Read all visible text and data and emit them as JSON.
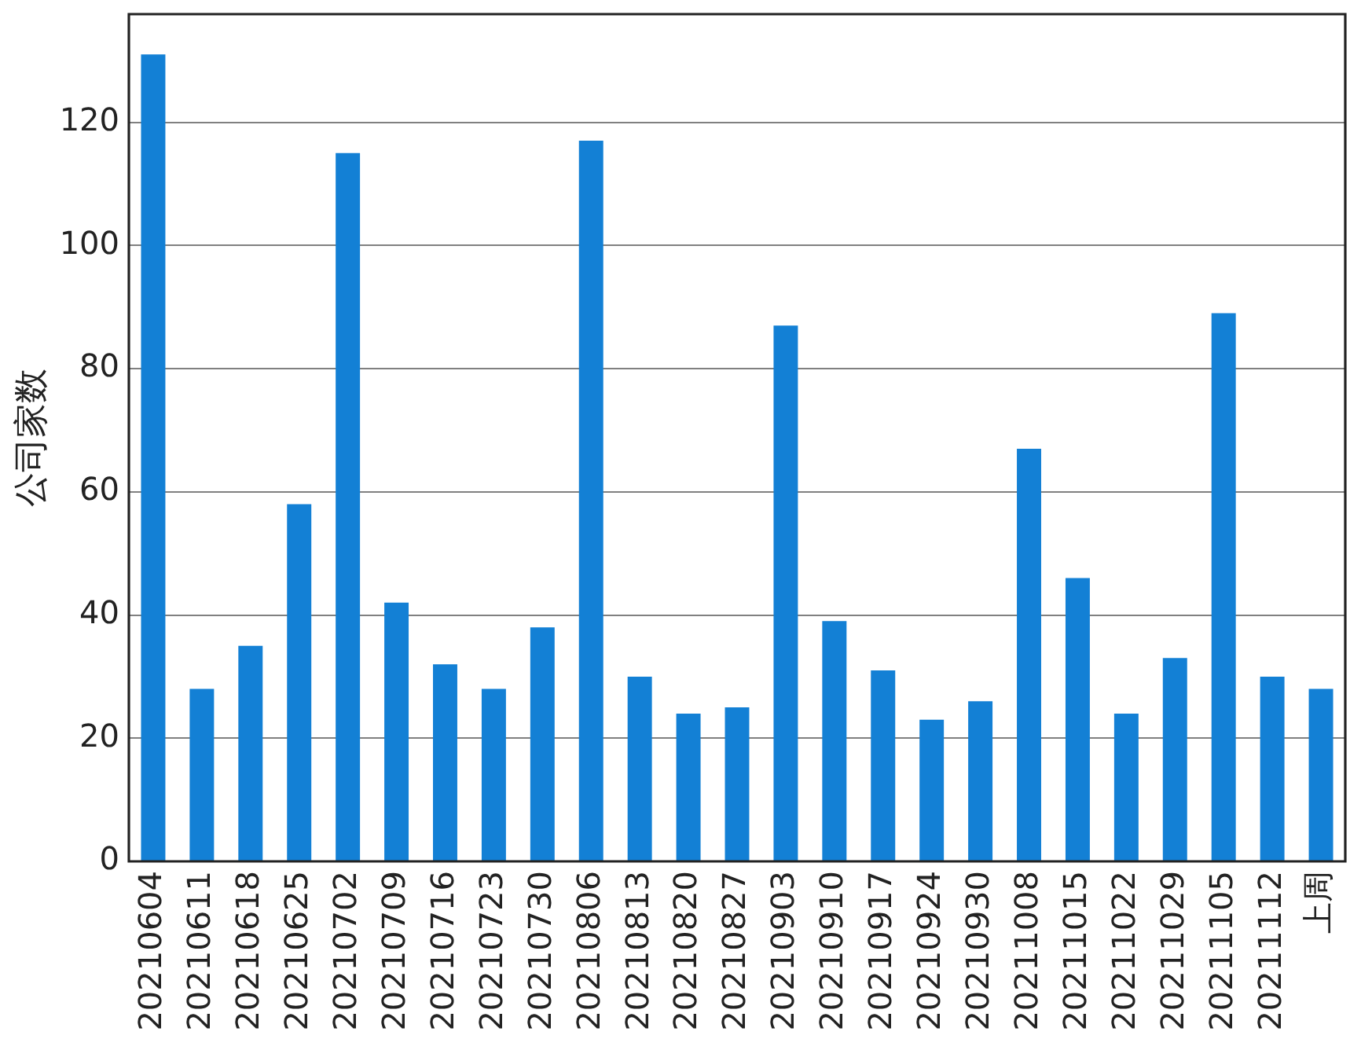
{
  "chart_data": {
    "type": "bar",
    "ylabel": "公司家数",
    "categories": [
      "20210604",
      "20210611",
      "20210618",
      "20210625",
      "20210702",
      "20210709",
      "20210716",
      "20210723",
      "20210730",
      "20210806",
      "20210813",
      "20210820",
      "20210827",
      "20210903",
      "20210910",
      "20210917",
      "20210924",
      "20210930",
      "20211008",
      "20211015",
      "20211022",
      "20211029",
      "20211105",
      "20211112",
      "上周"
    ],
    "values": [
      131,
      28,
      35,
      58,
      115,
      42,
      32,
      28,
      38,
      117,
      30,
      24,
      25,
      87,
      39,
      31,
      23,
      26,
      67,
      46,
      24,
      33,
      89,
      30,
      28
    ],
    "color": "#1380d5",
    "ylim": [
      0,
      137.55
    ],
    "yticks": [
      0,
      20,
      40,
      60,
      80,
      100,
      120
    ],
    "grid": "y"
  }
}
